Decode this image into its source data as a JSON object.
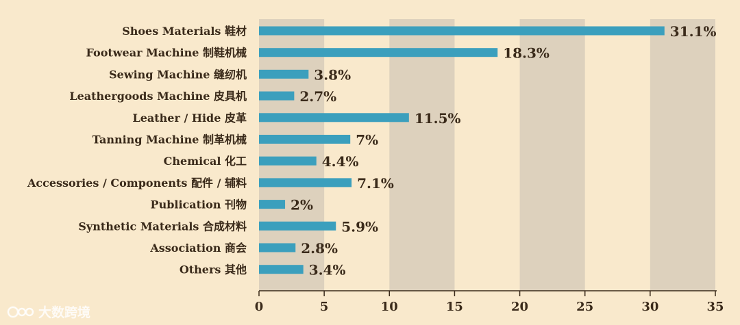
{
  "chart_data": {
    "type": "bar",
    "orientation": "horizontal",
    "categories": [
      "Shoes Materials 鞋材",
      "Footwear Machine 制鞋机械",
      "Sewing Machine 缝纫机",
      "Leathergoods Machine 皮具机",
      "Leather / Hide  皮革",
      "Tanning Machine 制革机械",
      "Chemical 化工",
      "Accessories / Components  配件 / 辅料",
      "Publication 刊物",
      "Synthetic Materials 合成材料",
      "Association 商会",
      "Others 其他"
    ],
    "values": [
      31.1,
      18.3,
      3.8,
      2.7,
      11.5,
      7,
      4.4,
      7.1,
      2,
      5.9,
      2.8,
      3.4
    ],
    "value_labels": [
      "31.1%",
      "18.3%",
      "3.8%",
      "2.7%",
      "11.5%",
      "7%",
      "4.4%",
      "7.1%",
      "2%",
      "5.9%",
      "2.8%",
      "3.4%"
    ],
    "xlim": [
      0,
      35
    ],
    "xticks": [
      0,
      5,
      10,
      15,
      20,
      25,
      30,
      35
    ],
    "xtick_labels": [
      "0",
      "5",
      "10",
      "15",
      "20",
      "25",
      "30",
      "35"
    ],
    "title": "",
    "xlabel": "",
    "ylabel": "",
    "colors": {
      "bar": "#3b9fbd",
      "band": "#ddd1bd",
      "background": "#f9e9cc",
      "axis": "#3a2a1a"
    }
  },
  "watermark": {
    "text": "大数跨境",
    "icon": "logo-icon"
  }
}
